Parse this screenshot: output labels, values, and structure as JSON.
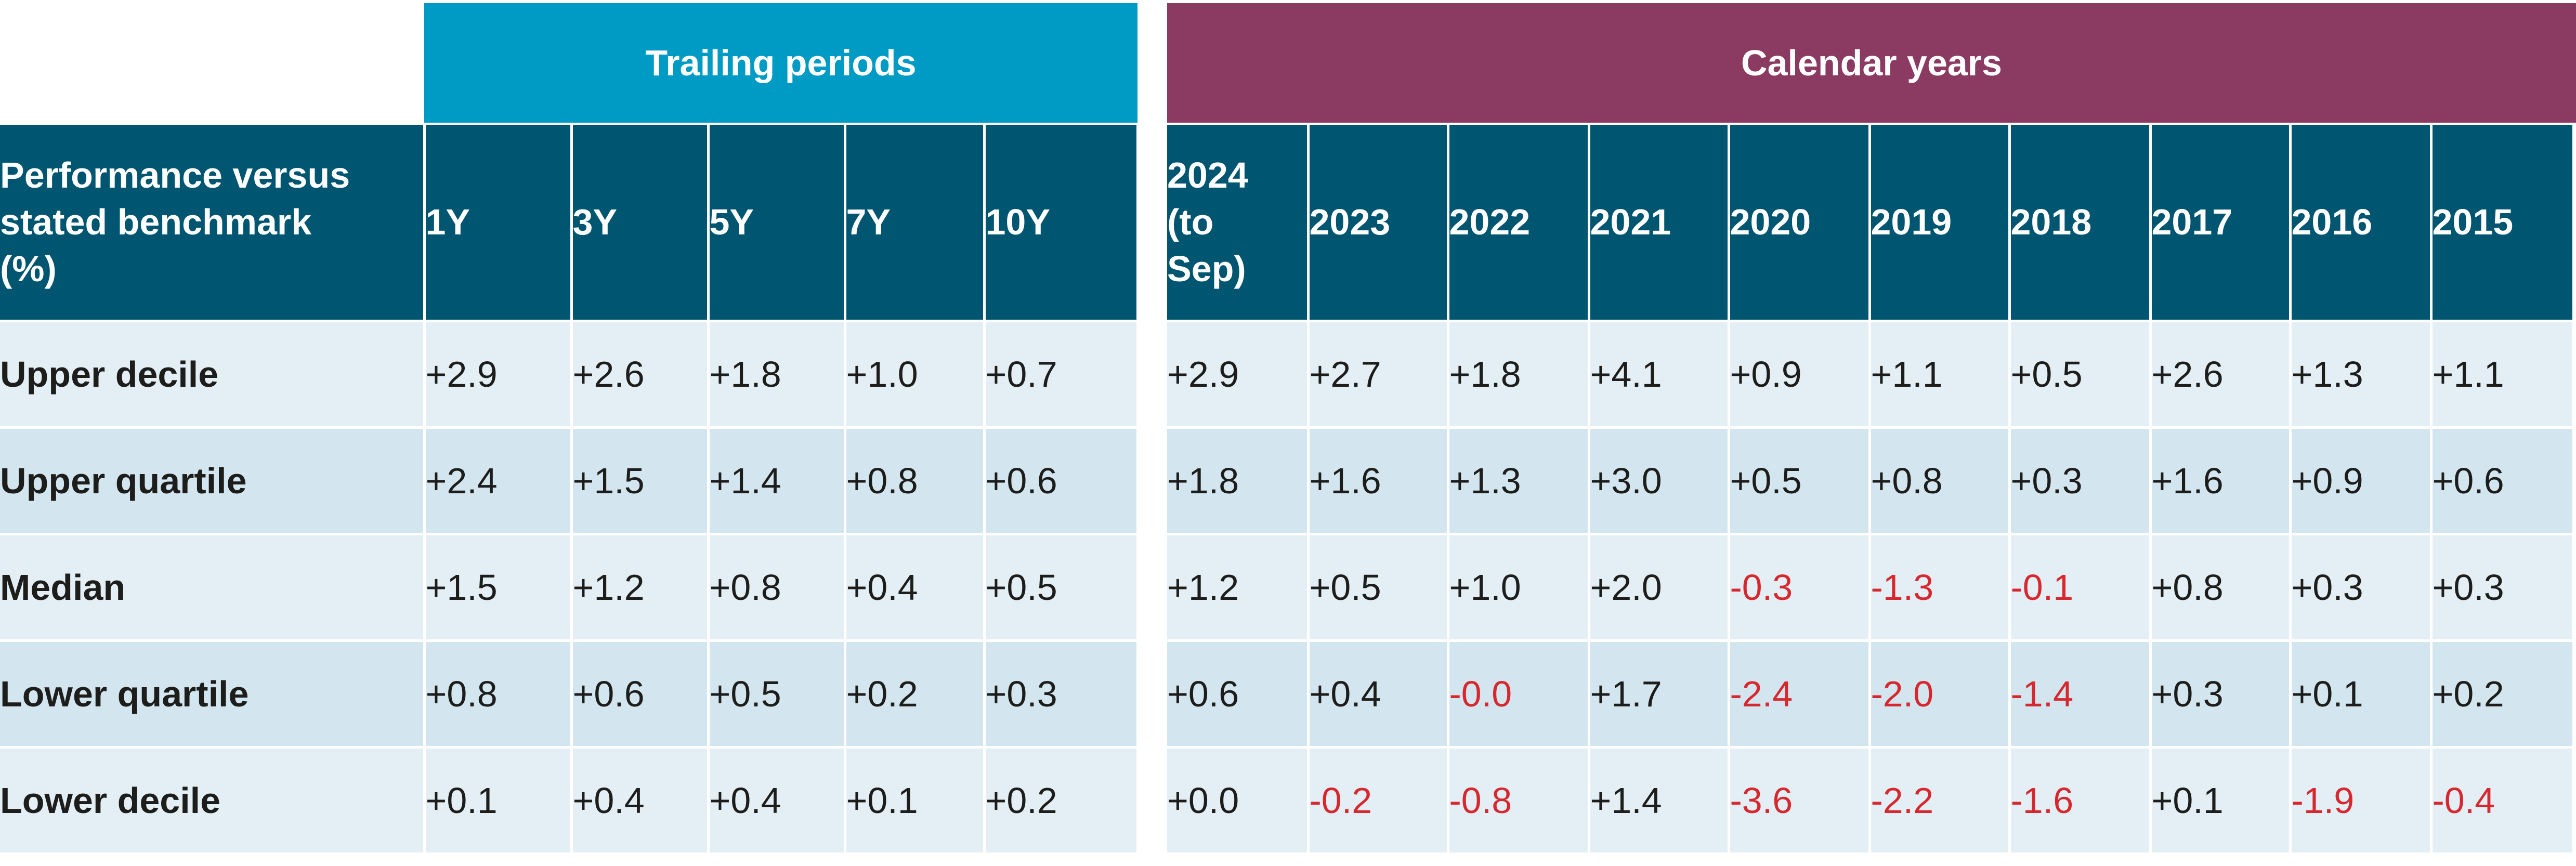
{
  "colors": {
    "trailing_header": "#009bc4",
    "calendar_header": "#8b3a62",
    "column_header": "#005570",
    "row_light": "#e4eff5",
    "row_dark": "#d3e6ef",
    "negative": "#d7282f"
  },
  "groups": {
    "trailing": "Trailing periods",
    "calendar": "Calendar years"
  },
  "chart_data": {
    "type": "table",
    "row_header_label": "Performance versus stated benchmark (%)",
    "trailing_columns": [
      "1Y",
      "3Y",
      "5Y",
      "7Y",
      "10Y"
    ],
    "calendar_columns": [
      "2024 (to Sep)",
      "2023",
      "2022",
      "2021",
      "2020",
      "2019",
      "2018",
      "2017",
      "2016",
      "2015"
    ],
    "rows": [
      {
        "label": "Upper decile",
        "trailing": [
          "+2.9",
          "+2.6",
          "+1.8",
          "+1.0",
          "+0.7"
        ],
        "calendar": [
          "+2.9",
          "+2.7",
          "+1.8",
          "+4.1",
          "+0.9",
          "+1.1",
          "+0.5",
          "+2.6",
          "+1.3",
          "+1.1"
        ]
      },
      {
        "label": "Upper quartile",
        "trailing": [
          "+2.4",
          "+1.5",
          "+1.4",
          "+0.8",
          "+0.6"
        ],
        "calendar": [
          "+1.8",
          "+1.6",
          "+1.3",
          "+3.0",
          "+0.5",
          "+0.8",
          "+0.3",
          "+1.6",
          "+0.9",
          "+0.6"
        ]
      },
      {
        "label": "Median",
        "trailing": [
          "+1.5",
          "+1.2",
          "+0.8",
          "+0.4",
          "+0.5"
        ],
        "calendar": [
          "+1.2",
          "+0.5",
          "+1.0",
          "+2.0",
          "-0.3",
          "-1.3",
          "-0.1",
          "+0.8",
          "+0.3",
          "+0.3"
        ]
      },
      {
        "label": "Lower quartile",
        "trailing": [
          "+0.8",
          "+0.6",
          "+0.5",
          "+0.2",
          "+0.3"
        ],
        "calendar": [
          "+0.6",
          "+0.4",
          "-0.0",
          "+1.7",
          "-2.4",
          "-2.0",
          "-1.4",
          "+0.3",
          "+0.1",
          "+0.2"
        ]
      },
      {
        "label": "Lower decile",
        "trailing": [
          "+0.1",
          "+0.4",
          "+0.4",
          "+0.1",
          "+0.2"
        ],
        "calendar": [
          "+0.0",
          "-0.2",
          "-0.8",
          "+1.4",
          "-3.6",
          "-2.2",
          "-1.6",
          "+0.1",
          "-1.9",
          "-0.4"
        ]
      }
    ]
  }
}
